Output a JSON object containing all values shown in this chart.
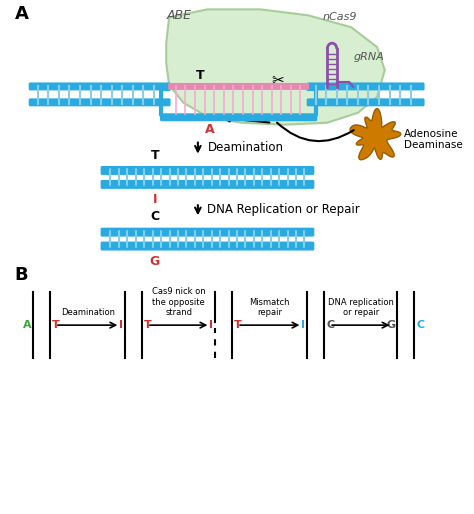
{
  "bg_color": "#ffffff",
  "label_A": "A",
  "label_B": "B",
  "abe_label": "ABE",
  "ncas9_label": "nCas9",
  "grna_label": "gRNA",
  "adenosine_label": "Adenosine\nDeaminase",
  "deamination_label": "Deamination",
  "dna_rep_label": "DNA Replication or Repair",
  "dna_color": "#29ABE2",
  "dna_rung_color": "#87CEEB",
  "pink_strand": "#E589B0",
  "pink_rung": "#F7AACF",
  "green_blob": "#d4edcc",
  "green_blob_edge": "#a0c890",
  "purple_grna": "#8B4FA8",
  "orange_enzyme": "#CC7A00",
  "orange_enzyme_edge": "#995C00",
  "T_color": "#000000",
  "A_color": "#cc3333",
  "I_color": "#cc3333",
  "C_color": "#000000",
  "G_color": "#cc3333",
  "step1_T": "T",
  "step1_I": "I",
  "step2_C": "C",
  "step2_G": "G",
  "b_labels_left": [
    "A",
    "I",
    "I",
    "I",
    "G"
  ],
  "b_labels_right": [
    "T",
    "T",
    "T",
    "C",
    "C"
  ],
  "b_label_colors_left": [
    "#33aa33",
    "#cc3333",
    "#cc3333",
    "#29ABE2",
    "#555555"
  ],
  "b_label_colors_right": [
    "#cc3333",
    "#cc3333",
    "#cc3333",
    "#555555",
    "#29ABE2"
  ],
  "b_step_labels": [
    "Deamination",
    "Cas9 nick on\nthe opposite\nstrand",
    "Mismatch\nrepair",
    "DNA replication\nor repair"
  ]
}
